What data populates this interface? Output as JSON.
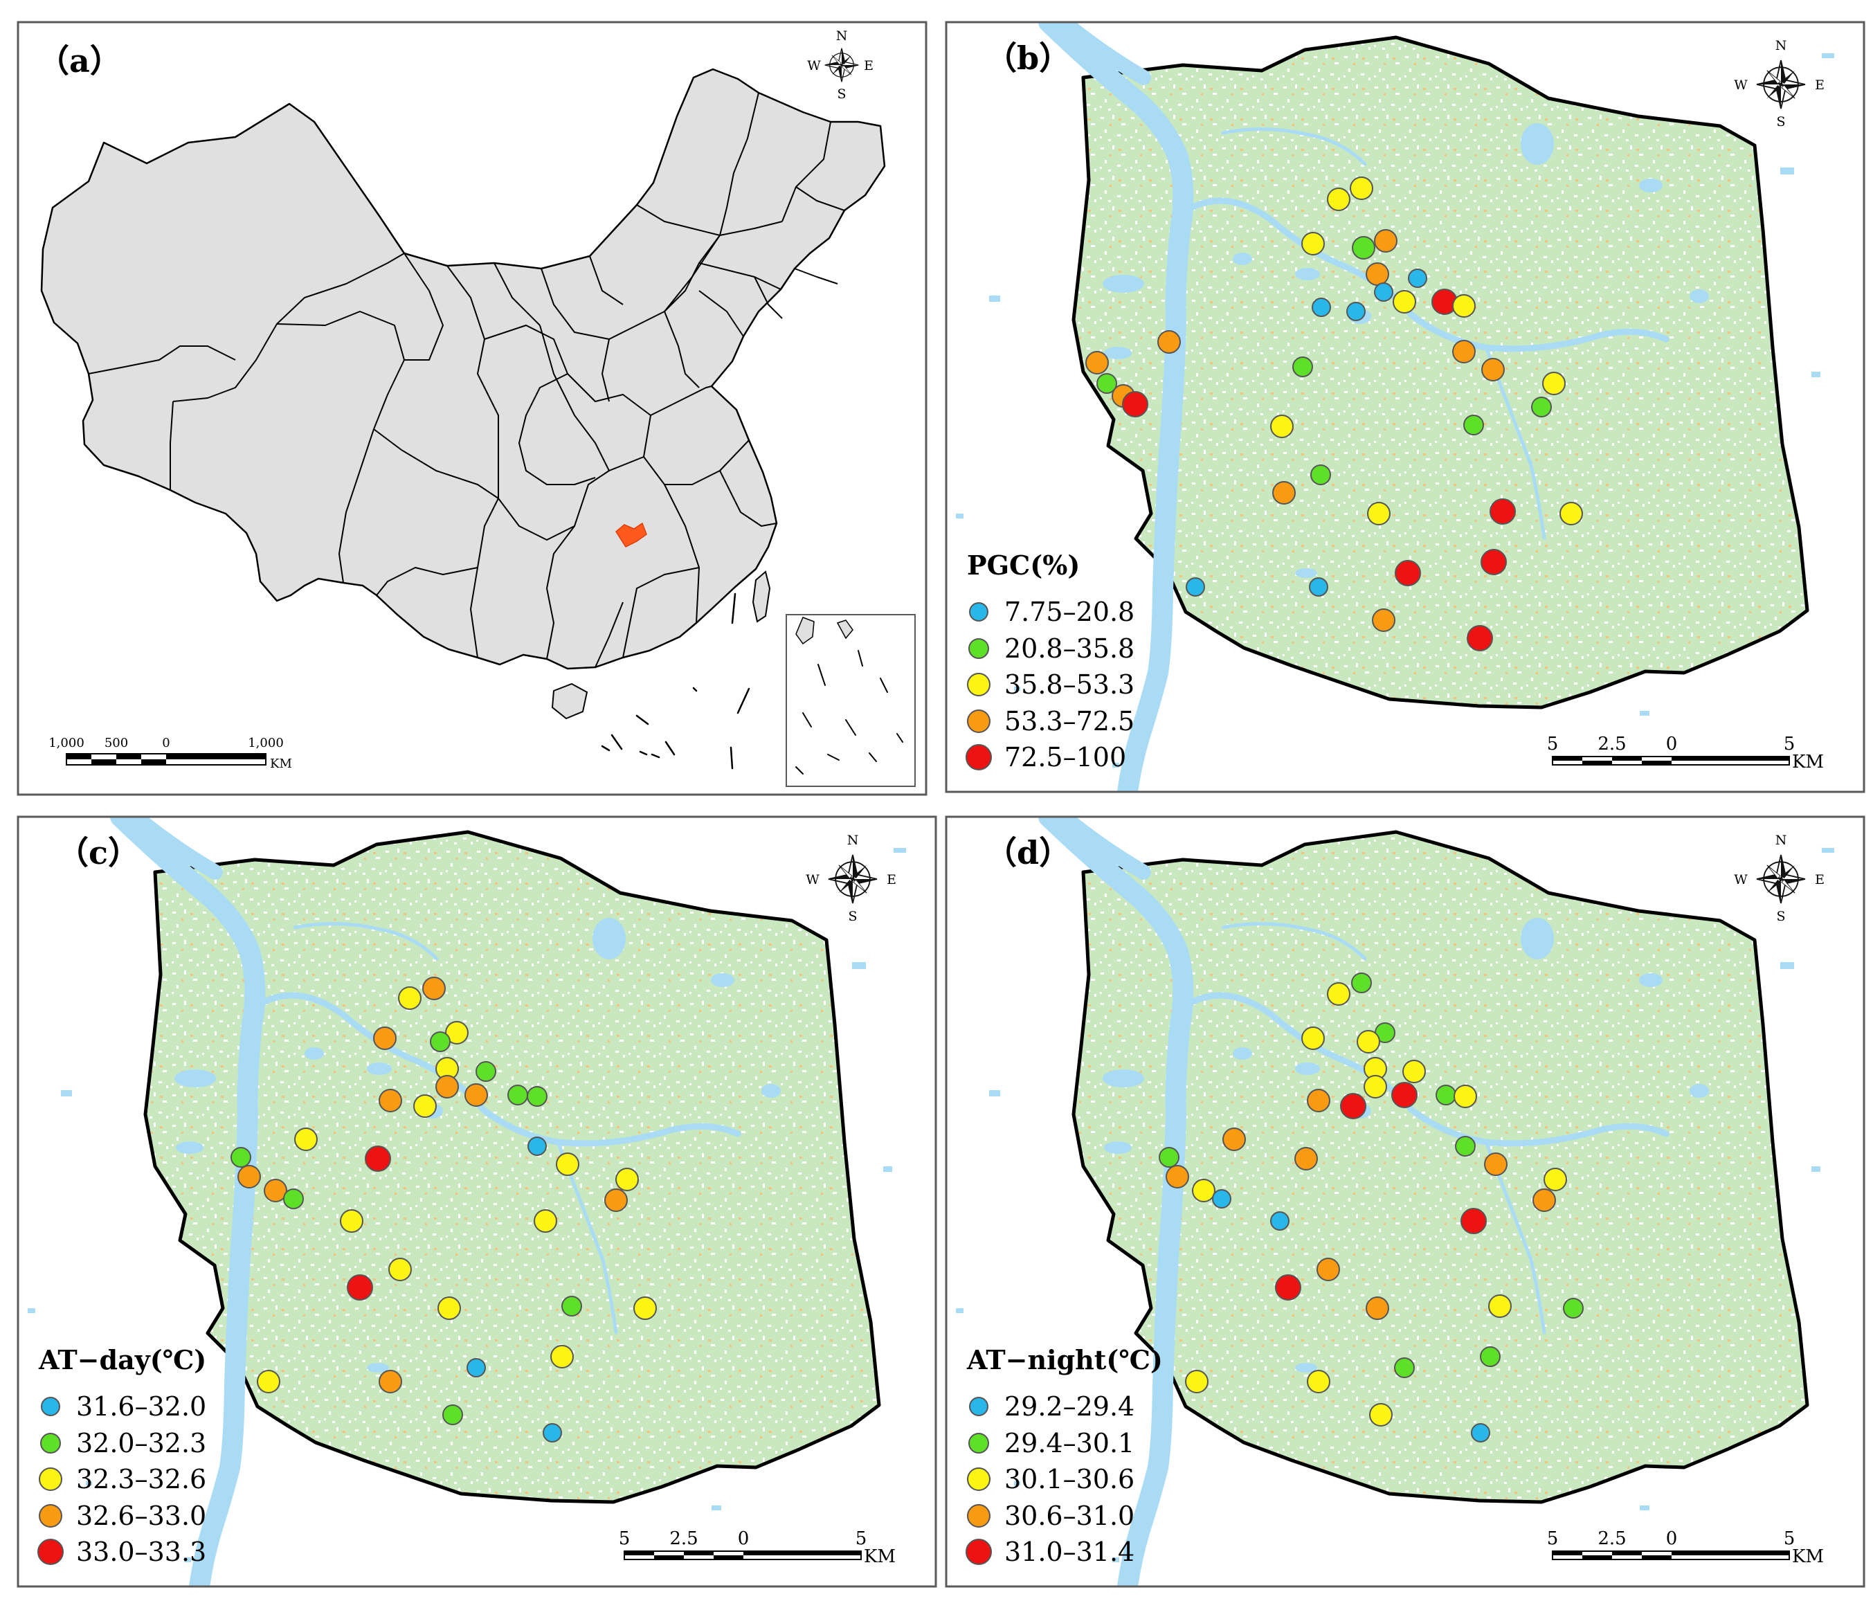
{
  "classes": [
    {
      "name": "blue",
      "color": "#29b6e8"
    },
    {
      "name": "green",
      "color": "#5fe028"
    },
    {
      "name": "yellow",
      "color": "#fcf513"
    },
    {
      "name": "orange",
      "color": "#f99a13"
    },
    {
      "name": "red",
      "color": "#ee1313"
    }
  ],
  "compass": {
    "n": "N",
    "s": "S",
    "e": "E",
    "w": "W"
  },
  "panel_a": {
    "label": "（a）",
    "scale_ticks": [
      "1,000",
      "500",
      "0",
      "1,000"
    ],
    "scale_unit": "KM"
  },
  "panel_b": {
    "label": "（b）",
    "legend_title": "PGC(%)",
    "legend_items": [
      "7.75–20.8",
      "20.8–35.8",
      "35.8–53.3",
      "53.3–72.5",
      "72.5–100"
    ],
    "scale_ticks": [
      "5",
      "2.5",
      "0",
      "5"
    ],
    "scale_unit": "KM"
  },
  "panel_c": {
    "label": "（c）",
    "legend_title": "AT−day(℃)",
    "legend_items": [
      "31.6–32.0",
      "32.0–32.3",
      "32.3–32.6",
      "32.6–33.0",
      "33.0–33.3"
    ],
    "scale_ticks": [
      "5",
      "2.5",
      "0",
      "5"
    ],
    "scale_unit": "KM"
  },
  "panel_d": {
    "label": "（d）",
    "legend_title": "AT−night(℃)",
    "legend_items": [
      "29.2–29.4",
      "29.4–30.1",
      "30.1–30.6",
      "30.6–31.0",
      "31.0–31.4"
    ],
    "scale_ticks": [
      "5",
      "2.5",
      "0",
      "5"
    ],
    "scale_unit": "KM"
  }
}
